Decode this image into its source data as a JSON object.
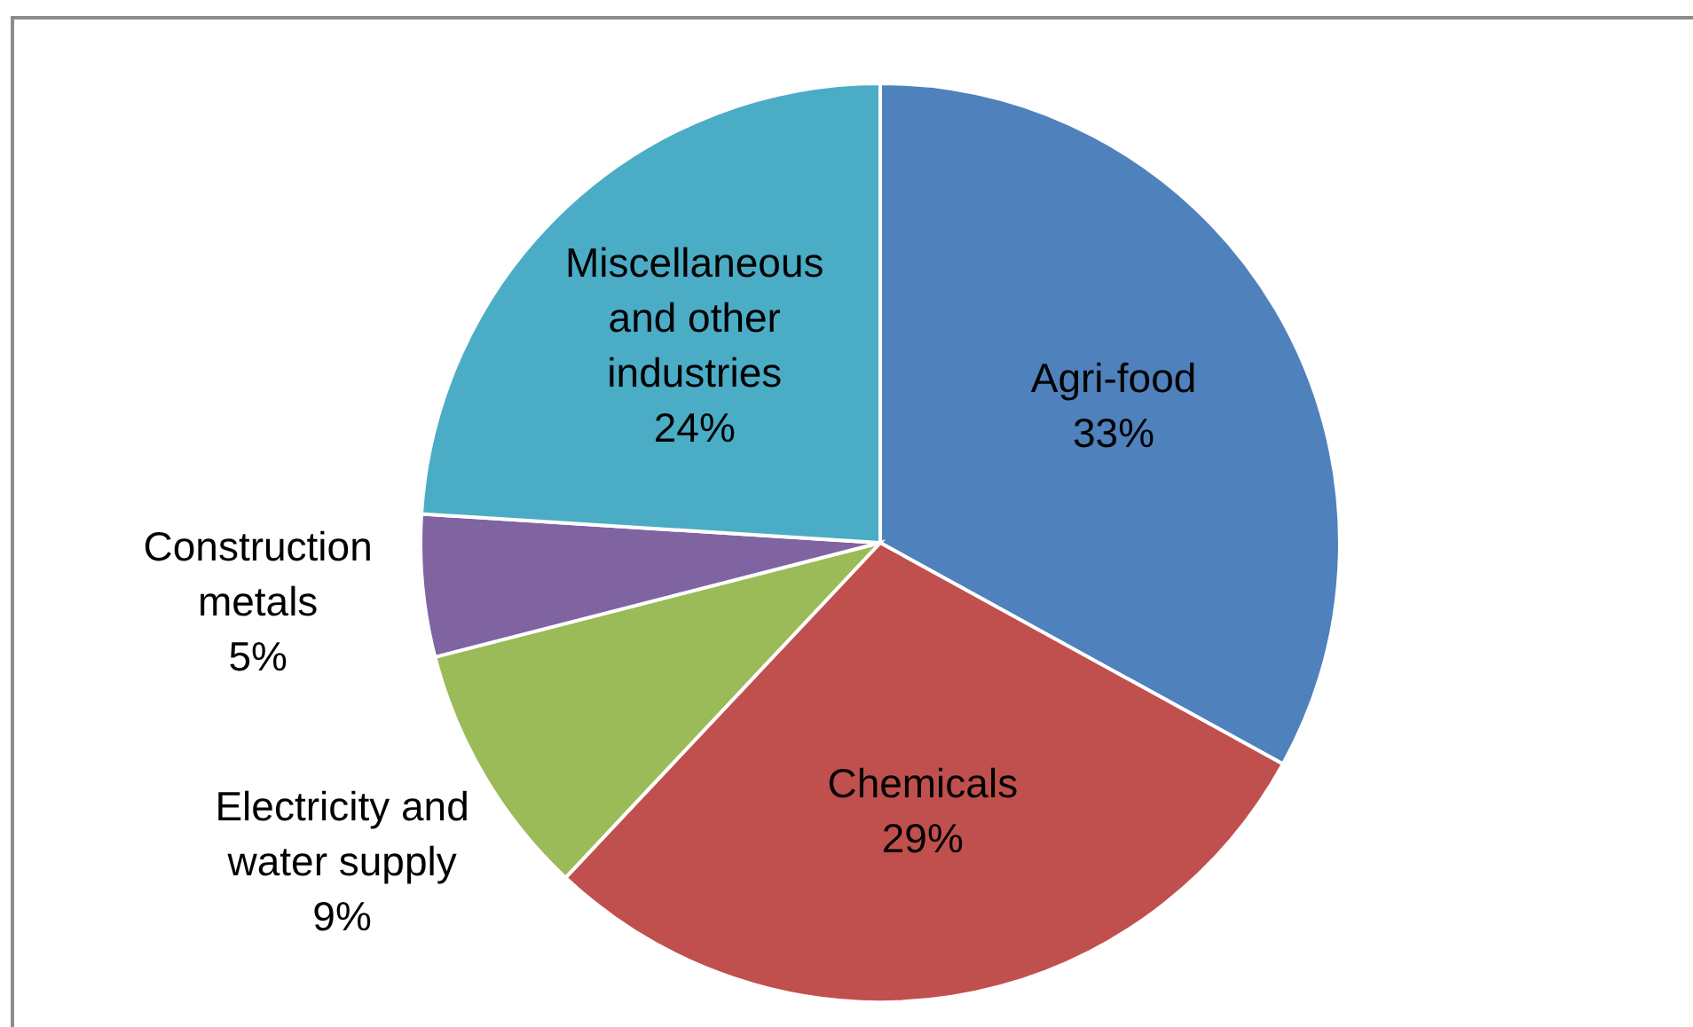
{
  "chart_data": {
    "type": "pie",
    "categories": [
      "Agri-food",
      "Chemicals",
      "Electricity and water supply",
      "Construction metals",
      "Miscellaneous and other industries"
    ],
    "values": [
      33,
      29,
      9,
      5,
      24
    ],
    "value_labels": [
      "33%",
      "29%",
      "9%",
      "5%",
      "24%"
    ],
    "colors": [
      "#4f81bd",
      "#c0504d",
      "#9bbb59",
      "#8064a2",
      "#4bacc6"
    ],
    "legend": false
  }
}
